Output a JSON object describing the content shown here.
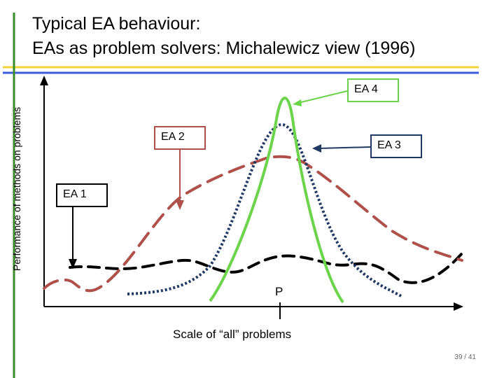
{
  "title": {
    "line1": "Typical EA behaviour:",
    "line2": "EAs as problem solvers: Michalewicz view (1996)"
  },
  "axes": {
    "ylabel": "Performance of methods on problems",
    "xlabel": "Scale of “all” problems",
    "marker_label": "P"
  },
  "callouts": {
    "ea1": "EA 1",
    "ea2": "EA 2",
    "ea3": "EA 3",
    "ea4": "EA 4"
  },
  "colors": {
    "ea1": "#000000",
    "ea2": "#b0504b",
    "ea3": "#1f3864",
    "ea4": "#6bd44a",
    "accent_green": "#3a8a2a",
    "accent_blue": "#3b5bdb",
    "accent_yellow": "#f2d43a"
  },
  "page": "39 / 41"
}
